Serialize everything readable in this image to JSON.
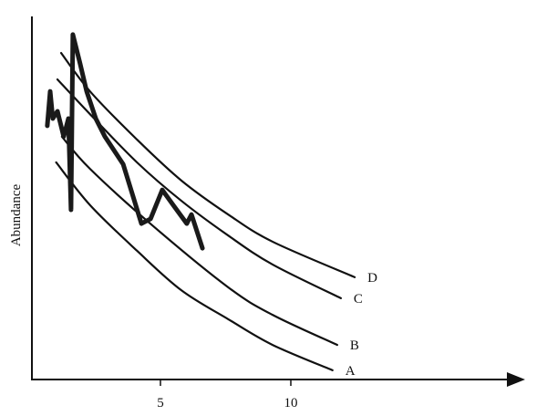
{
  "chart_data": {
    "type": "line",
    "title": "",
    "xlabel": "",
    "ylabel": "Abundance",
    "xlim": [
      0,
      19
    ],
    "ylim": [
      0,
      100
    ],
    "x_ticks": [
      5,
      10
    ],
    "x_tick_labels": [
      "5",
      "10"
    ],
    "y_ticks": [],
    "grid": false,
    "legend": "none (series labeled at right end of curves)",
    "series": [
      {
        "name": "A",
        "style": "thin",
        "x": [
          1.0,
          2.3,
          4.1,
          5.8,
          7.6,
          9.3,
          11.6
        ],
        "y": [
          59.7,
          47.9,
          35.3,
          24.4,
          16.4,
          9.3,
          2.3
        ]
      },
      {
        "name": "B",
        "style": "thin",
        "x": [
          1.22,
          2.3,
          4.69,
          7.6,
          9.3,
          11.78
        ],
        "y": [
          66.8,
          57.9,
          42.3,
          25.2,
          17.6,
          9.3
        ]
      },
      {
        "name": "C",
        "style": "thin",
        "x": [
          1.05,
          2.3,
          4.1,
          5.8,
          7.6,
          9.3,
          11.92
        ],
        "y": [
          82.6,
          73.0,
          59.7,
          49.1,
          39.5,
          31.5,
          22.2
        ]
      },
      {
        "name": "D",
        "style": "thin",
        "x": [
          1.19,
          2.3,
          4.1,
          5.8,
          7.6,
          9.3,
          12.45
        ],
        "y": [
          89.9,
          79.3,
          66.0,
          54.7,
          45.3,
          37.8,
          28.0
        ]
      },
      {
        "style": "thick",
        "x": [
          0.66,
          0.77,
          0.87,
          1.05,
          1.29,
          1.47,
          1.57,
          1.64,
          1.92,
          2.17,
          2.52,
          2.87,
          3.57,
          4.27,
          4.62,
          5.07,
          5.49,
          6.01,
          6.19,
          6.61
        ],
        "y": [
          69.8,
          79.3,
          71.8,
          73.8,
          66.8,
          71.8,
          46.6,
          95.0,
          86.9,
          79.3,
          71.8,
          66.8,
          59.2,
          42.8,
          44.1,
          52.1,
          47.9,
          42.8,
          45.3,
          36.0
        ]
      }
    ]
  }
}
